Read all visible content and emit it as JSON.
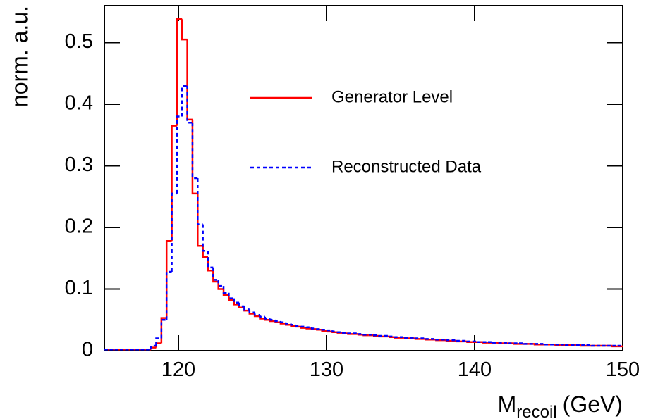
{
  "chart_data": {
    "type": "step-histogram",
    "ylabel": "norm. a.u.",
    "xlabel": {
      "main": "M",
      "sub": "recoil",
      "unit": "(GeV)"
    },
    "xlim": [
      115,
      150
    ],
    "xticks": [
      120,
      130,
      140,
      150
    ],
    "ylim": [
      0,
      0.56
    ],
    "yticks": [
      0,
      0.1,
      0.2,
      0.3,
      0.4,
      0.5
    ],
    "bins": [
      115,
      115.35,
      115.7,
      116.05,
      116.4,
      116.75,
      117.1,
      117.45,
      117.8,
      118.15,
      118.5,
      118.85,
      119.2,
      119.55,
      119.9,
      120.25,
      120.6,
      120.95,
      121.3,
      121.65,
      122,
      122.35,
      122.7,
      123.05,
      123.4,
      123.75,
      124.1,
      124.45,
      124.8,
      125.15,
      125.5,
      125.85,
      126.2,
      126.55,
      126.9,
      127.25,
      127.6,
      127.95,
      128.3,
      128.65,
      129,
      129.35,
      129.7,
      130.05,
      130.4,
      130.75,
      131.1,
      131.45,
      131.8,
      132.15,
      132.5,
      132.85,
      133.2,
      133.55,
      133.9,
      134.25,
      134.6,
      134.95,
      135.3,
      135.65,
      136,
      136.35,
      136.7,
      137.05,
      137.4,
      137.75,
      138.1,
      138.45,
      138.8,
      139.15,
      139.5,
      139.85,
      140.2,
      140.55,
      140.9,
      141.25,
      141.6,
      141.95,
      142.3,
      142.65,
      143,
      143.35,
      143.7,
      144.05,
      144.4,
      144.75,
      145.1,
      145.45,
      145.8,
      146.15,
      146.5,
      146.85,
      147.2,
      147.55,
      147.9,
      148.25,
      148.6,
      148.95,
      149.3,
      149.65,
      150
    ],
    "series": [
      {
        "name": "Generator Level",
        "color": "#ff0000",
        "dashed": false,
        "values": [
          0.002,
          0.002,
          0.002,
          0.002,
          0.002,
          0.002,
          0.002,
          0.002,
          0.002,
          0.005,
          0.012,
          0.053,
          0.178,
          0.365,
          0.538,
          0.505,
          0.375,
          0.255,
          0.17,
          0.152,
          0.13,
          0.112,
          0.1,
          0.09,
          0.082,
          0.075,
          0.07,
          0.065,
          0.06,
          0.056,
          0.052,
          0.05,
          0.048,
          0.046,
          0.044,
          0.042,
          0.04,
          0.039,
          0.037,
          0.036,
          0.035,
          0.034,
          0.032,
          0.031,
          0.03,
          0.029,
          0.028,
          0.027,
          0.027,
          0.026,
          0.025,
          0.025,
          0.024,
          0.023,
          0.023,
          0.022,
          0.021,
          0.021,
          0.02,
          0.02,
          0.019,
          0.019,
          0.018,
          0.018,
          0.017,
          0.017,
          0.016,
          0.016,
          0.015,
          0.015,
          0.014,
          0.014,
          0.014,
          0.013,
          0.013,
          0.013,
          0.012,
          0.012,
          0.012,
          0.011,
          0.011,
          0.011,
          0.011,
          0.01,
          0.01,
          0.01,
          0.01,
          0.009,
          0.009,
          0.009,
          0.009,
          0.009,
          0.008,
          0.008,
          0.008,
          0.008,
          0.008,
          0.008,
          0.007,
          0.007
        ]
      },
      {
        "name": "Reconstructed Data",
        "color": "#0000ff",
        "dashed": true,
        "values": [
          0.002,
          0.002,
          0.002,
          0.002,
          0.002,
          0.002,
          0.002,
          0.002,
          0.002,
          0.008,
          0.02,
          0.05,
          0.128,
          0.255,
          0.38,
          0.43,
          0.37,
          0.28,
          0.205,
          0.162,
          0.135,
          0.115,
          0.105,
          0.094,
          0.085,
          0.078,
          0.072,
          0.067,
          0.062,
          0.058,
          0.055,
          0.052,
          0.05,
          0.048,
          0.046,
          0.044,
          0.042,
          0.04,
          0.039,
          0.038,
          0.036,
          0.035,
          0.034,
          0.033,
          0.031,
          0.03,
          0.029,
          0.028,
          0.028,
          0.027,
          0.026,
          0.026,
          0.025,
          0.024,
          0.024,
          0.023,
          0.022,
          0.022,
          0.021,
          0.021,
          0.02,
          0.02,
          0.019,
          0.019,
          0.018,
          0.018,
          0.017,
          0.017,
          0.016,
          0.016,
          0.015,
          0.015,
          0.014,
          0.014,
          0.014,
          0.013,
          0.013,
          0.013,
          0.012,
          0.012,
          0.012,
          0.011,
          0.011,
          0.011,
          0.011,
          0.01,
          0.01,
          0.01,
          0.01,
          0.009,
          0.009,
          0.009,
          0.009,
          0.009,
          0.008,
          0.008,
          0.008,
          0.008,
          0.008,
          0.008
        ]
      }
    ]
  }
}
